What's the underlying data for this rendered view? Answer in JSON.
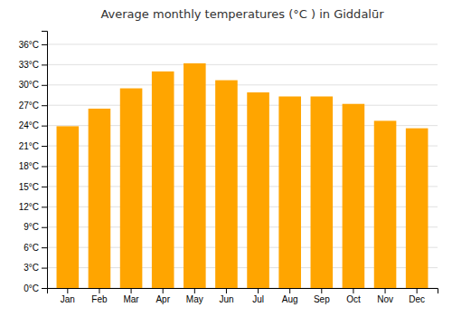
{
  "chart_data": {
    "type": "bar",
    "title": "Average monthly temperatures (°C ) in Giddalūr",
    "categories": [
      "Jan",
      "Feb",
      "Mar",
      "Apr",
      "May",
      "Jun",
      "Jul",
      "Aug",
      "Sep",
      "Oct",
      "Nov",
      "Dec"
    ],
    "values": [
      23.9,
      26.5,
      29.5,
      32.0,
      33.2,
      30.7,
      28.9,
      28.3,
      28.3,
      27.2,
      24.7,
      23.6
    ],
    "color": "#FFA500",
    "ylim": [
      0,
      38
    ],
    "yticks": [
      {
        "value": 0,
        "label": "0°C"
      },
      {
        "value": 3,
        "label": "3°C"
      },
      {
        "value": 6,
        "label": "6°C"
      },
      {
        "value": 9,
        "label": "9°C"
      },
      {
        "value": 12,
        "label": "12°C"
      },
      {
        "value": 15,
        "label": "15°C"
      },
      {
        "value": 18,
        "label": "18°C"
      },
      {
        "value": 21,
        "label": "21°C"
      },
      {
        "value": 24,
        "label": "24°C"
      },
      {
        "value": 27,
        "label": "27°C"
      },
      {
        "value": 30,
        "label": "30°C"
      },
      {
        "value": 33,
        "label": "33°C"
      },
      {
        "value": 36,
        "label": "36°C"
      }
    ],
    "grid": true
  }
}
